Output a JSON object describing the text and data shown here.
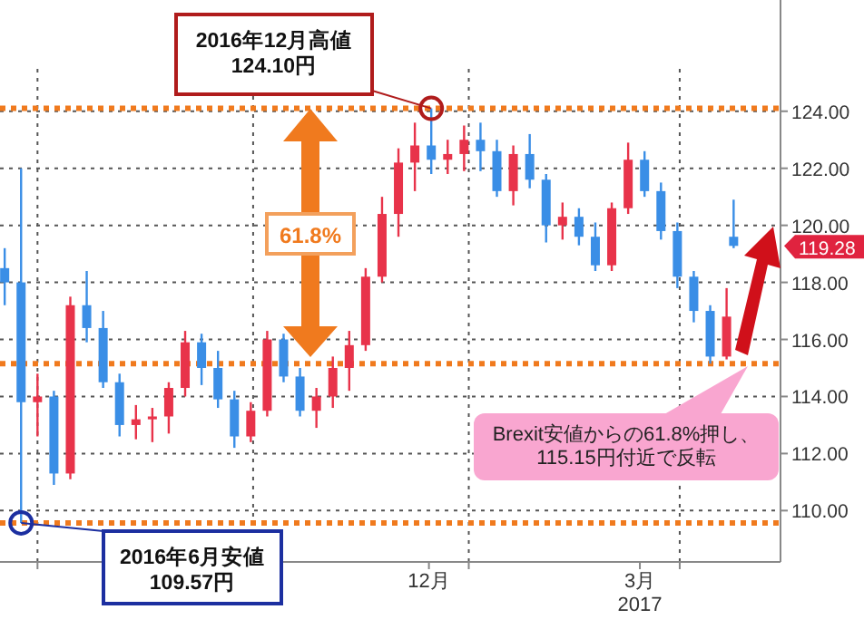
{
  "chart_data": {
    "type": "candlestick",
    "x": [
      "2016-06-17",
      "2016-06-24",
      "2016-07-01",
      "2016-07-08",
      "2016-07-15",
      "2016-07-22",
      "2016-07-29",
      "2016-08-05",
      "2016-08-12",
      "2016-08-19",
      "2016-08-26",
      "2016-09-02",
      "2016-09-09",
      "2016-09-16",
      "2016-09-23",
      "2016-09-30",
      "2016-10-07",
      "2016-10-14",
      "2016-10-21",
      "2016-10-28",
      "2016-11-04",
      "2016-11-11",
      "2016-11-18",
      "2016-11-25",
      "2016-12-02",
      "2016-12-09",
      "2016-12-16",
      "2016-12-23",
      "2016-12-30",
      "2017-01-06",
      "2017-01-13",
      "2017-01-20",
      "2017-01-27",
      "2017-02-03",
      "2017-02-10",
      "2017-02-17",
      "2017-02-24",
      "2017-03-03",
      "2017-03-10",
      "2017-03-17",
      "2017-03-24",
      "2017-03-31",
      "2017-04-07",
      "2017-04-14",
      "2017-04-21",
      "2017-04-24"
    ],
    "ohlc": [
      [
        118.5,
        119.2,
        117.2,
        118.0
      ],
      [
        118.0,
        122.0,
        109.57,
        113.8
      ],
      [
        113.8,
        114.8,
        112.6,
        114.0
      ],
      [
        114.0,
        114.2,
        110.9,
        111.3
      ],
      [
        111.3,
        117.5,
        111.1,
        117.2
      ],
      [
        117.2,
        118.4,
        115.9,
        116.4
      ],
      [
        116.4,
        117.0,
        114.3,
        114.5
      ],
      [
        114.5,
        114.8,
        112.6,
        113.0
      ],
      [
        113.0,
        113.7,
        112.5,
        113.2
      ],
      [
        113.2,
        113.6,
        112.4,
        113.3
      ],
      [
        113.3,
        114.5,
        112.7,
        114.3
      ],
      [
        114.3,
        116.3,
        114.0,
        115.9
      ],
      [
        115.9,
        116.2,
        114.4,
        115.0
      ],
      [
        115.0,
        115.6,
        113.6,
        113.9
      ],
      [
        113.9,
        114.2,
        112.2,
        112.6
      ],
      [
        112.6,
        113.8,
        112.4,
        113.5
      ],
      [
        113.5,
        116.3,
        113.3,
        116.0
      ],
      [
        116.0,
        116.2,
        114.5,
        114.7
      ],
      [
        114.7,
        115.0,
        113.3,
        113.5
      ],
      [
        113.5,
        114.3,
        112.9,
        114.0
      ],
      [
        114.0,
        115.4,
        113.6,
        115.0
      ],
      [
        115.0,
        116.3,
        114.2,
        115.8
      ],
      [
        115.8,
        118.5,
        115.6,
        118.2
      ],
      [
        118.2,
        121.0,
        118.0,
        120.4
      ],
      [
        120.4,
        122.7,
        119.6,
        122.2
      ],
      [
        122.2,
        123.6,
        121.2,
        122.8
      ],
      [
        122.8,
        124.1,
        121.8,
        122.3
      ],
      [
        122.3,
        123.0,
        121.8,
        122.5
      ],
      [
        122.5,
        123.5,
        121.9,
        123.0
      ],
      [
        123.0,
        123.6,
        121.9,
        122.6
      ],
      [
        122.6,
        123.0,
        121.0,
        121.2
      ],
      [
        121.2,
        122.8,
        120.7,
        122.5
      ],
      [
        122.5,
        123.2,
        121.3,
        121.6
      ],
      [
        121.6,
        121.8,
        119.4,
        120.0
      ],
      [
        120.0,
        120.8,
        119.5,
        120.3
      ],
      [
        120.3,
        120.6,
        119.3,
        119.6
      ],
      [
        119.6,
        120.1,
        118.4,
        118.6
      ],
      [
        118.6,
        120.8,
        118.4,
        120.6
      ],
      [
        120.6,
        122.9,
        120.4,
        122.3
      ],
      [
        122.3,
        122.6,
        121.0,
        121.2
      ],
      [
        121.2,
        121.5,
        119.5,
        119.8
      ],
      [
        119.8,
        120.1,
        117.8,
        118.2
      ],
      [
        118.2,
        118.4,
        116.6,
        117.0
      ],
      [
        117.0,
        117.2,
        115.15,
        115.4
      ],
      [
        115.4,
        117.8,
        115.3,
        116.8
      ],
      [
        119.6,
        120.9,
        119.2,
        119.28
      ]
    ],
    "colors": [
      "#3a8ee6",
      "#3a8ee6",
      "#e8334a",
      "#3a8ee6",
      "#e8334a",
      "#3a8ee6",
      "#3a8ee6",
      "#3a8ee6",
      "#e8334a",
      "#e8334a",
      "#e8334a",
      "#e8334a",
      "#3a8ee6",
      "#3a8ee6",
      "#3a8ee6",
      "#e8334a",
      "#e8334a",
      "#3a8ee6",
      "#3a8ee6",
      "#e8334a",
      "#e8334a",
      "#e8334a",
      "#e8334a",
      "#e8334a",
      "#e8334a",
      "#e8334a",
      "#3a8ee6",
      "#e8334a",
      "#e8334a",
      "#3a8ee6",
      "#3a8ee6",
      "#e8334a",
      "#3a8ee6",
      "#3a8ee6",
      "#e8334a",
      "#3a8ee6",
      "#3a8ee6",
      "#e8334a",
      "#e8334a",
      "#3a8ee6",
      "#3a8ee6",
      "#3a8ee6",
      "#3a8ee6",
      "#3a8ee6",
      "#e8334a",
      "#3a8ee6"
    ],
    "xlim": [
      "2016-06-15",
      "2017-05-14"
    ],
    "xticks": [
      {
        "value": "2016-07-01",
        "label": null
      },
      {
        "value": "2016-10-01",
        "label": null
      },
      {
        "value": "2016-12-15",
        "label": "12月"
      },
      {
        "value": "2017-01-01",
        "label": null
      },
      {
        "value": "2017-03-15",
        "label": "3月\n2017"
      },
      {
        "value": "2017-04-01",
        "label": null
      }
    ],
    "ylim": [
      108.2,
      127.9
    ],
    "yticks": [
      {
        "value": 110,
        "label": "110.00"
      },
      {
        "value": 112,
        "label": "112.00"
      },
      {
        "value": 114,
        "label": "114.00"
      },
      {
        "value": 116,
        "label": "116.00"
      },
      {
        "value": 118,
        "label": "118.00"
      },
      {
        "value": 120,
        "label": "120.00"
      },
      {
        "value": 122,
        "label": "122.00"
      },
      {
        "value": 124,
        "label": "124.00"
      }
    ],
    "grid": true,
    "ref_lines": [
      {
        "axis": "y",
        "value": 124.1,
        "color": "#f07a1e",
        "line_style": "dotted"
      },
      {
        "axis": "y",
        "value": 115.15,
        "color": "#f07a1e",
        "line_style": "dotted"
      },
      {
        "axis": "y",
        "value": 109.57,
        "color": "#f07a1e",
        "line_style": "dotted"
      }
    ],
    "annotations": [
      {
        "text": "2016年12月高値\n124.10円",
        "x": "2016-12-16",
        "y": 124.1
      },
      {
        "text": "2016年6月安値\n109.57円",
        "x": "2016-06-24",
        "y": 109.57
      },
      "61.8%",
      "Brexit安値からの61.8%押し、\n115.15円付近で反転",
      "119.28"
    ]
  }
}
